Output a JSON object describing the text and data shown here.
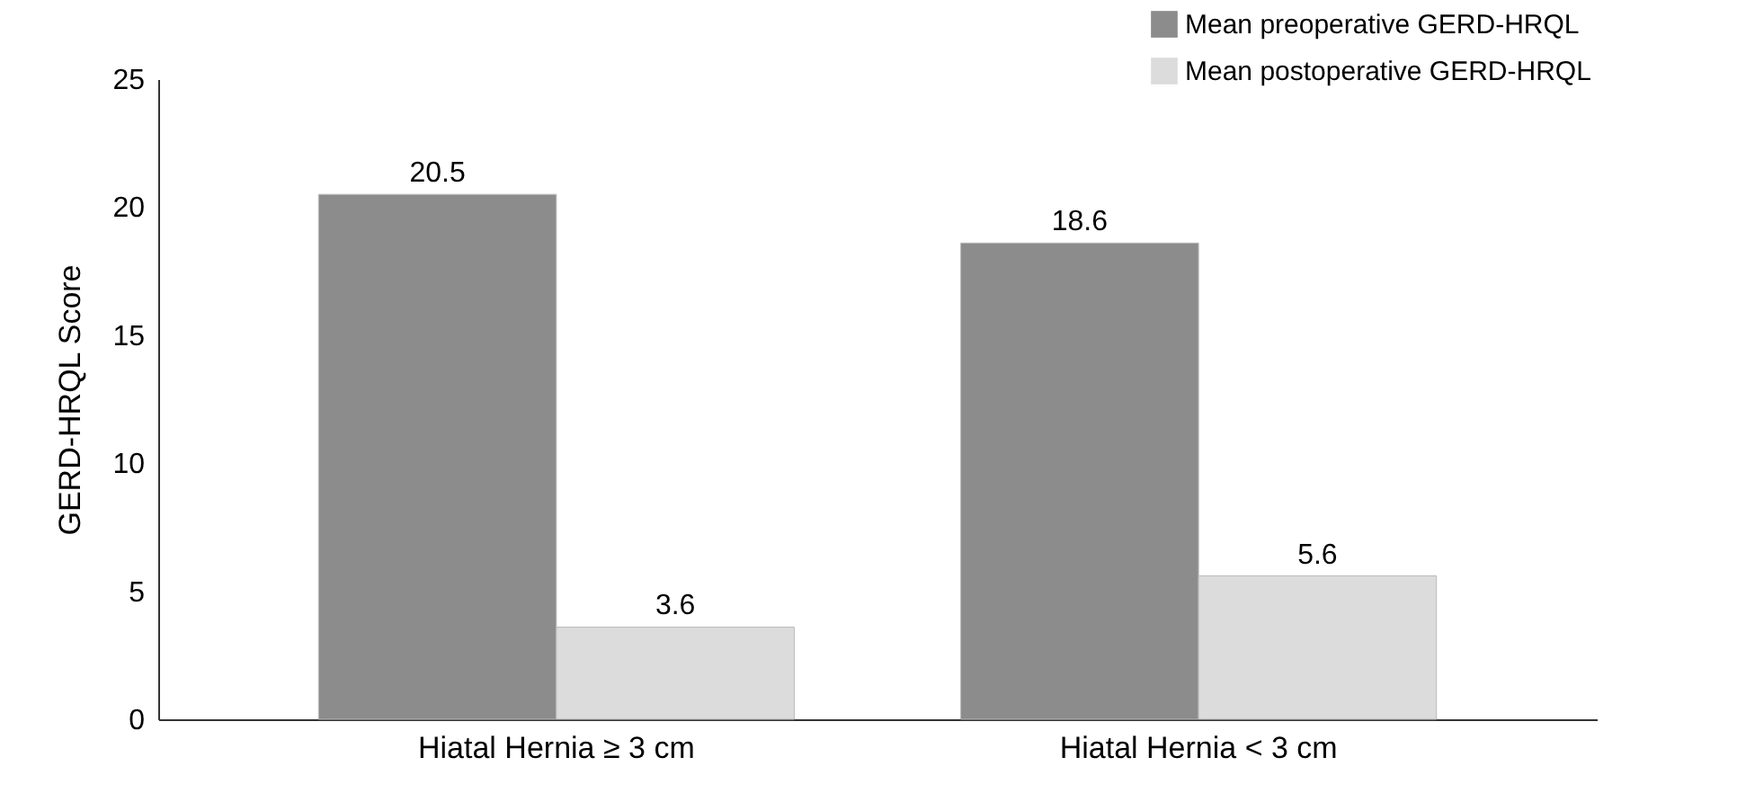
{
  "chart_data": {
    "type": "bar",
    "categories": [
      "Hiatal Hernia ≥ 3 cm",
      "Hiatal Hernia < 3 cm"
    ],
    "ylabel": "GERD-HRQL Score",
    "ylim": [
      0,
      25
    ],
    "yticks": [
      0,
      5,
      10,
      15,
      20,
      25
    ],
    "grid": false,
    "legend": "top right",
    "data_labels": true,
    "series": [
      {
        "name": "Mean preoperative GERD-HRQL",
        "color": "#8c8c8c",
        "values": [
          20.5,
          18.6
        ]
      },
      {
        "name": "Mean postoperative GERD-HRQL",
        "color": "#dcdcdc",
        "values": [
          3.6,
          5.6
        ]
      }
    ]
  }
}
